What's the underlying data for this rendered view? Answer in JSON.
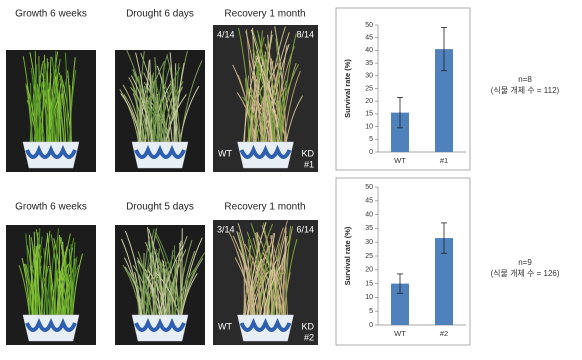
{
  "rows": [
    {
      "labels": [
        "Growth 6 weeks",
        "Drought 6 days",
        "Recovery 1 month"
      ],
      "counts": [
        "4/14",
        "8/14"
      ],
      "tags": [
        "WT",
        "KD",
        "#1"
      ]
    },
    {
      "labels": [
        "Growth 6 weeks",
        "Drought 5 days",
        "Recovery 1 month"
      ],
      "counts": [
        "3/14",
        "6/14"
      ],
      "tags": [
        "WT",
        "KD",
        "#2"
      ]
    }
  ],
  "chart_data": [
    {
      "type": "bar",
      "ylabel": "Survival rate (%)",
      "categories": [
        "WT",
        "#1"
      ],
      "values": [
        15.5,
        40.5
      ],
      "errors": [
        6,
        8.5
      ],
      "color": "#4f81bd",
      "ylim": [
        0,
        50
      ],
      "yticks": [
        0,
        5,
        10,
        15,
        20,
        25,
        30,
        35,
        40,
        45,
        50
      ],
      "annotations": [
        "n=8",
        "(식물 개체 수 = 112)"
      ]
    },
    {
      "type": "bar",
      "ylabel": "Survival rate (%)",
      "categories": [
        "WT",
        "#2"
      ],
      "values": [
        15,
        31.5
      ],
      "errors": [
        3.5,
        5.5
      ],
      "color": "#4f81bd",
      "ylim": [
        0,
        50
      ],
      "yticks": [
        0,
        5,
        10,
        15,
        20,
        25,
        30,
        35,
        40,
        45,
        50
      ],
      "annotations": [
        "n=9",
        "(식물 개체 수 = 126)"
      ]
    }
  ]
}
